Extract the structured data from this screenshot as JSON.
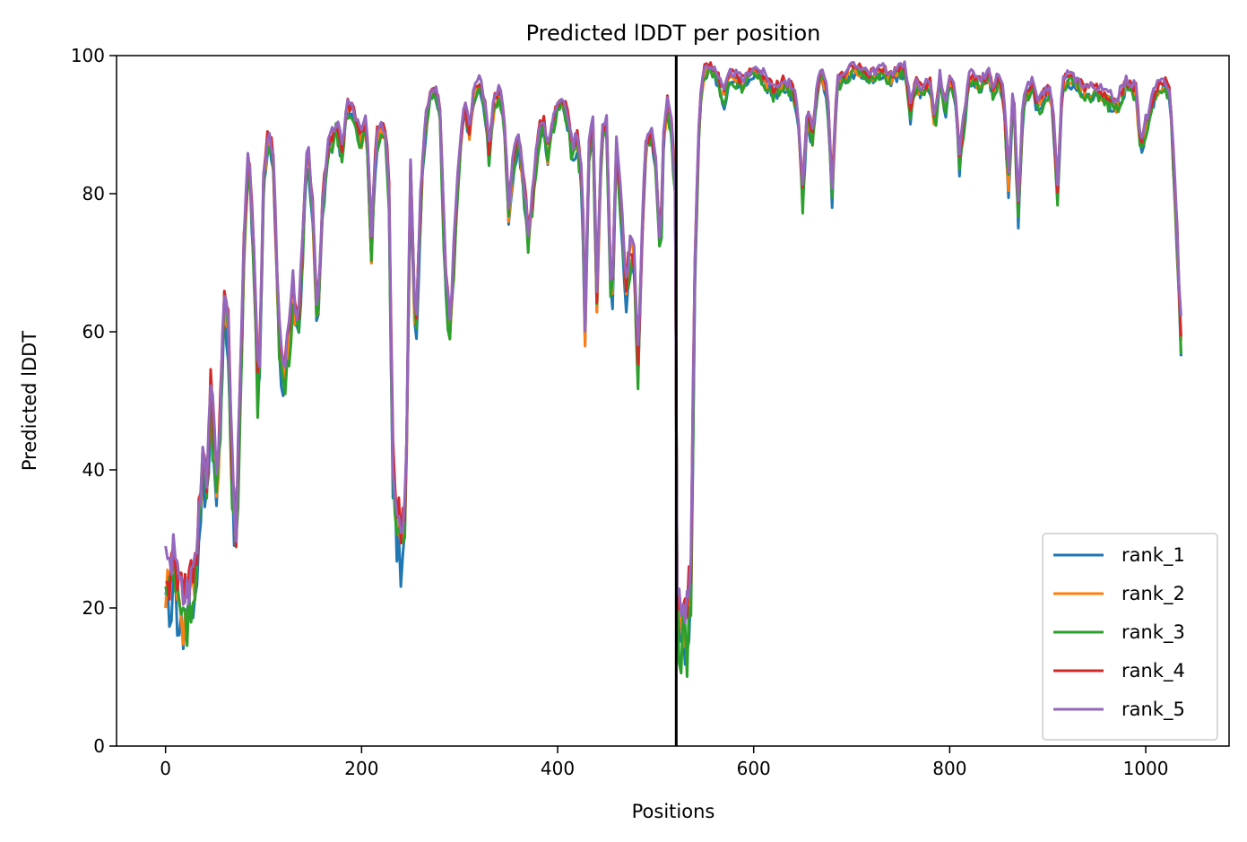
{
  "chart_data": {
    "type": "line",
    "title": "Predicted lDDT per position",
    "xlabel": "Positions",
    "ylabel": "Predicted lDDT",
    "xlim": [
      -50,
      1085
    ],
    "ylim": [
      0,
      100
    ],
    "xticks": [
      0,
      200,
      400,
      600,
      800,
      1000
    ],
    "yticks": [
      0,
      20,
      40,
      60,
      80,
      100
    ],
    "grid": false,
    "legend_position": "lower-right",
    "chain_break": 521,
    "base_profile": {
      "x": [
        0,
        5,
        8,
        12,
        18,
        25,
        32,
        38,
        42,
        46,
        52,
        56,
        60,
        64,
        68,
        72,
        76,
        80,
        85,
        90,
        95,
        100,
        105,
        110,
        115,
        120,
        125,
        130,
        135,
        140,
        145,
        150,
        155,
        160,
        165,
        170,
        175,
        180,
        185,
        190,
        195,
        200,
        205,
        210,
        215,
        220,
        225,
        228,
        232,
        236,
        240,
        245,
        250,
        255,
        260,
        265,
        270,
        275,
        280,
        285,
        290,
        295,
        300,
        305,
        310,
        315,
        320,
        325,
        330,
        335,
        340,
        345,
        350,
        355,
        360,
        365,
        370,
        375,
        380,
        385,
        390,
        395,
        400,
        405,
        410,
        415,
        420,
        425,
        428,
        432,
        436,
        440,
        445,
        450,
        455,
        460,
        465,
        470,
        475,
        478,
        482,
        486,
        490,
        495,
        500,
        505,
        508,
        512,
        516,
        520,
        521,
        522,
        525,
        528,
        532,
        536,
        540,
        545,
        550,
        555,
        560,
        565,
        570,
        575,
        580,
        590,
        600,
        610,
        620,
        630,
        640,
        645,
        650,
        655,
        660,
        665,
        670,
        675,
        680,
        685,
        690,
        700,
        710,
        720,
        730,
        740,
        750,
        755,
        760,
        765,
        770,
        780,
        785,
        790,
        795,
        800,
        805,
        810,
        820,
        830,
        840,
        845,
        850,
        855,
        860,
        865,
        870,
        875,
        880,
        885,
        890,
        895,
        900,
        905,
        910,
        915,
        920,
        930,
        940,
        950,
        960,
        970,
        980,
        990,
        995,
        1000,
        1010,
        1020,
        1025,
        1030,
        1033,
        1036
      ],
      "y": [
        24,
        22,
        30,
        22,
        19,
        21,
        27,
        42,
        38,
        52,
        37,
        48,
        65,
        60,
        40,
        30,
        50,
        72,
        87,
        70,
        48,
        82,
        89,
        85,
        62,
        52,
        58,
        66,
        60,
        73,
        87,
        78,
        60,
        78,
        86,
        88,
        90,
        86,
        93,
        92,
        90,
        88,
        91,
        72,
        88,
        90,
        88,
        80,
        40,
        33,
        30,
        34,
        85,
        58,
        78,
        90,
        94,
        95,
        92,
        70,
        60,
        74,
        86,
        93,
        89,
        95,
        96,
        94,
        86,
        93,
        95,
        92,
        78,
        85,
        88,
        82,
        74,
        80,
        88,
        91,
        86,
        90,
        93,
        94,
        91,
        86,
        88,
        82,
        60,
        86,
        90,
        65,
        89,
        90,
        62,
        87,
        78,
        66,
        73,
        70,
        55,
        73,
        87,
        89,
        85,
        71,
        88,
        93,
        90,
        80,
        60,
        22,
        17,
        18,
        18,
        24,
        70,
        93,
        98,
        98,
        98,
        96,
        94,
        97,
        97,
        96,
        98,
        97,
        95,
        96,
        95,
        92,
        80,
        92,
        88,
        96,
        97,
        95,
        80,
        96,
        97,
        98,
        98,
        97,
        98,
        97,
        98,
        98,
        92,
        96,
        95,
        96,
        90,
        97,
        92,
        96,
        95,
        85,
        97,
        96,
        97,
        95,
        97,
        94,
        82,
        96,
        77,
        94,
        95,
        96,
        92,
        94,
        95,
        93,
        80,
        96,
        97,
        96,
        95,
        95,
        94,
        93,
        96,
        95,
        86,
        90,
        95,
        96,
        94,
        80,
        70,
        60
      ]
    },
    "series": [
      {
        "name": "rank_1",
        "color": "#1f77b4",
        "offset": -1.2,
        "amp": 1.8,
        "seed": 11
      },
      {
        "name": "rank_2",
        "color": "#ff7f0e",
        "offset": -0.4,
        "amp": 1.7,
        "seed": 23
      },
      {
        "name": "rank_3",
        "color": "#2ca02c",
        "offset": -1.0,
        "amp": 2.2,
        "seed": 37
      },
      {
        "name": "rank_4",
        "color": "#d62728",
        "offset": 0.6,
        "amp": 1.6,
        "seed": 51
      },
      {
        "name": "rank_5",
        "color": "#9467bd",
        "offset": 0.9,
        "amp": 1.4,
        "seed": 67
      }
    ]
  }
}
